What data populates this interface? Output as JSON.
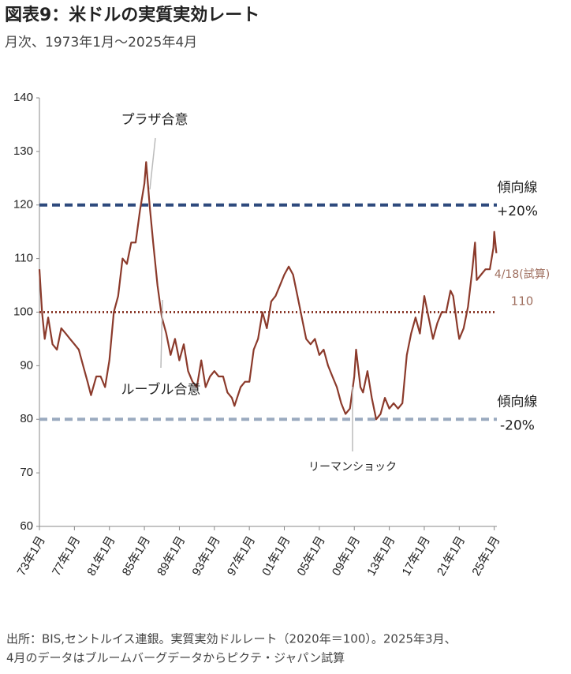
{
  "chart_data": {
    "type": "line",
    "title": "図表9：米ドルの実質実効レート",
    "subtitle": "月次、1973年1月～2025年4月",
    "x": [
      1973.0,
      1973.3,
      1973.6,
      1974.0,
      1974.5,
      1975.0,
      1975.5,
      1976.0,
      1976.5,
      1977.0,
      1977.5,
      1978.0,
      1978.5,
      1978.9,
      1979.5,
      1980.0,
      1980.5,
      1981.0,
      1981.5,
      1982.0,
      1982.5,
      1983.0,
      1983.5,
      1984.0,
      1984.5,
      1985.0,
      1985.2,
      1985.6,
      1986.0,
      1986.5,
      1987.0,
      1987.5,
      1988.0,
      1988.5,
      1989.0,
      1989.5,
      1990.0,
      1990.5,
      1991.0,
      1991.5,
      1992.0,
      1992.5,
      1993.0,
      1993.5,
      1994.0,
      1994.5,
      1995.0,
      1995.3,
      1996.0,
      1996.5,
      1997.0,
      1997.5,
      1998.0,
      1998.5,
      1999.0,
      1999.5,
      2000.0,
      2000.5,
      2001.0,
      2001.5,
      2002.0,
      2002.5,
      2003.0,
      2003.5,
      2004.0,
      2004.5,
      2005.0,
      2005.5,
      2006.0,
      2006.5,
      2007.0,
      2007.5,
      2008.0,
      2008.5,
      2009.0,
      2009.2,
      2009.7,
      2010.0,
      2010.5,
      2011.0,
      2011.5,
      2012.0,
      2012.5,
      2013.0,
      2013.5,
      2014.0,
      2014.5,
      2015.0,
      2015.5,
      2016.0,
      2016.5,
      2017.0,
      2017.5,
      2018.0,
      2018.5,
      2019.0,
      2019.5,
      2020.0,
      2020.3,
      2020.8,
      2021.0,
      2021.5,
      2022.0,
      2022.5,
      2022.8,
      2023.0,
      2023.5,
      2024.0,
      2024.5,
      2024.9,
      2025.0,
      2025.25
    ],
    "values": [
      108,
      100,
      95,
      99,
      94,
      93,
      97,
      96,
      95,
      94,
      93,
      90,
      87,
      84.5,
      88,
      88,
      86,
      91,
      100,
      103,
      110,
      109,
      113,
      113,
      119,
      124,
      128,
      120,
      113,
      105,
      99,
      96,
      92,
      95,
      91,
      94,
      89,
      87,
      86,
      91,
      86,
      88,
      89,
      88,
      88,
      85,
      84,
      82.5,
      86,
      87,
      87,
      93,
      95,
      100,
      97,
      102,
      103,
      105,
      107,
      108.5,
      107,
      103,
      99,
      95,
      94,
      95,
      92,
      93,
      90,
      88,
      86,
      83,
      81,
      82,
      88,
      93,
      86,
      85,
      89,
      84,
      80,
      81,
      84,
      82,
      83,
      82,
      83,
      92,
      96,
      99,
      96,
      103,
      99,
      95,
      98,
      100,
      100,
      104,
      103,
      97,
      95,
      97,
      101,
      108,
      113,
      106,
      107,
      108,
      108,
      112,
      115,
      111
    ],
    "color": "#8b3a2b",
    "xlim": [
      1973,
      2025.3
    ],
    "xticks": [
      {
        "value": 1973,
        "label": "73年1月"
      },
      {
        "value": 1977,
        "label": "77年1月"
      },
      {
        "value": 1981,
        "label": "81年1月"
      },
      {
        "value": 1985,
        "label": "85年1月"
      },
      {
        "value": 1989,
        "label": "89年1月"
      },
      {
        "value": 1993,
        "label": "93年1月"
      },
      {
        "value": 1997,
        "label": "97年1月"
      },
      {
        "value": 2001,
        "label": "01年1月"
      },
      {
        "value": 2005,
        "label": "05年1月"
      },
      {
        "value": 2009,
        "label": "09年1月"
      },
      {
        "value": 2013,
        "label": "13年1月"
      },
      {
        "value": 2017,
        "label": "17年1月"
      },
      {
        "value": 2021,
        "label": "21年1月"
      },
      {
        "value": 2025,
        "label": "25年1月"
      }
    ],
    "ylim": [
      60,
      140
    ],
    "yticks": [
      60,
      70,
      80,
      90,
      100,
      110,
      120,
      130,
      140
    ],
    "reference_lines": [
      {
        "value": 120,
        "color": "#2e4a7d",
        "style": "dashed",
        "label": [
          "傾向線",
          "+20%"
        ]
      },
      {
        "value": 100,
        "color": "#8b3a2b",
        "style": "dotted"
      },
      {
        "value": 80,
        "color": "#9aaabf",
        "style": "dashed",
        "label": [
          "傾向線",
          "-20%"
        ]
      }
    ],
    "estimate": {
      "label": "4/18(試算)",
      "value": 110
    },
    "annotations": [
      "プラザ合意",
      "ルーブル合意",
      "リーマンショック"
    ],
    "footnote": [
      "出所：BIS,セントルイス連銀。実質実効ドルレート（2020年＝100）。2025年3月、",
      "4月のデータはブルームバーグデータからピクテ・ジャパン試算"
    ]
  }
}
